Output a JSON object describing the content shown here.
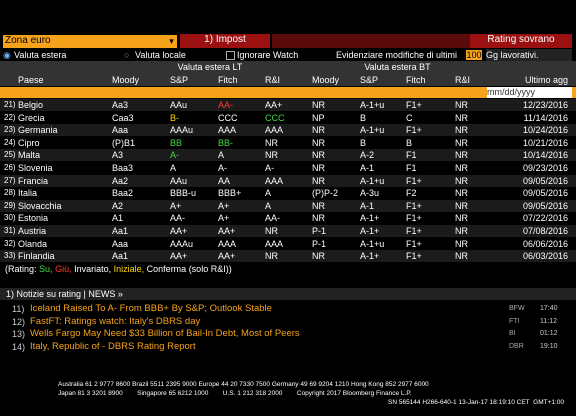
{
  "toolbar": {
    "search": "Zona euro",
    "button": "1) Impost",
    "title": "Rating sovrano"
  },
  "options": {
    "radio_selected": "Valuta estera",
    "radio_other": "Valuta locale",
    "checkbox": "Ignorare Watch",
    "highlight_label": "Evidenziare modifiche di ultimi",
    "days": "100",
    "days_unit": "Gg lavorativi."
  },
  "table": {
    "groups": [
      "Valuta estera LT",
      "Valuta estera BT"
    ],
    "columns": [
      "Paese",
      "Moody",
      "S&P",
      "Fitch",
      "R&I",
      "Moody",
      "S&P",
      "Fitch",
      "R&I",
      "Ultimo agg"
    ],
    "date_filter": "mm/dd/yyyy",
    "rows": [
      {
        "num": "21)",
        "cells": [
          "Belgio",
          "Aa3",
          "AAu",
          {
            "text": "AA-",
            "color": "#ff3b30"
          },
          "AA+",
          "NR",
          "A-1+u",
          "F1+",
          "NR",
          "12/23/2016"
        ]
      },
      {
        "num": "22)",
        "cells": [
          "Grecia",
          "Caa3",
          {
            "text": "B-",
            "color": "#ffd700"
          },
          "CCC",
          {
            "text": "CCC",
            "color": "#3ddc3d"
          },
          "NP",
          "B",
          "C",
          "NR",
          "11/14/2016"
        ]
      },
      {
        "num": "23)",
        "cells": [
          "Germania",
          "Aaa",
          "AAAu",
          "AAA",
          "AAA",
          "NR",
          "A-1+u",
          "F1+",
          "NR",
          "10/24/2016"
        ]
      },
      {
        "num": "24)",
        "cells": [
          "Cipro",
          "(P)B1",
          {
            "text": "BB",
            "color": "#3ddc3d"
          },
          {
            "text": "BB-",
            "color": "#3ddc3d"
          },
          "NR",
          "NR",
          "B",
          "B",
          "NR",
          "10/21/2016"
        ]
      },
      {
        "num": "25)",
        "cells": [
          "Malta",
          "A3",
          {
            "text": "A-",
            "color": "#3ddc3d"
          },
          "A",
          "NR",
          "NR",
          "A-2",
          "F1",
          "NR",
          "10/14/2016"
        ]
      },
      {
        "num": "26)",
        "cells": [
          "Slovenia",
          "Baa3",
          "A",
          "A-",
          "A-",
          "NR",
          "A-1",
          "F1",
          "NR",
          "09/23/2016"
        ]
      },
      {
        "num": "27)",
        "cells": [
          "Francia",
          "Aa2",
          "AAu",
          "AA",
          "AAA",
          "NR",
          "A-1+u",
          "F1+",
          "NR",
          "09/05/2016"
        ]
      },
      {
        "num": "28)",
        "cells": [
          "Italia",
          "Baa2",
          "BBB-u",
          "BBB+",
          "A",
          "(P)P-2",
          "A-3u",
          "F2",
          "NR",
          "09/05/2016"
        ]
      },
      {
        "num": "29)",
        "cells": [
          "Slovacchia",
          "A2",
          "A+",
          "A+",
          "A",
          "NR",
          "A-1",
          "F1+",
          "NR",
          "09/05/2016"
        ]
      },
      {
        "num": "30)",
        "cells": [
          "Estonia",
          "A1",
          "AA-",
          "A+",
          "AA-",
          "NR",
          "A-1+",
          "F1+",
          "NR",
          "07/22/2016"
        ]
      },
      {
        "num": "31)",
        "cells": [
          "Austria",
          "Aa1",
          "AA+",
          "AA+",
          "NR",
          "P-1",
          "A-1+",
          "F1+",
          "NR",
          "07/08/2016"
        ]
      },
      {
        "num": "32)",
        "cells": [
          "Olanda",
          "Aaa",
          "AAAu",
          "AAA",
          "AAA",
          "P-1",
          "A-1+u",
          "F1+",
          "NR",
          "06/06/2016"
        ]
      },
      {
        "num": "33)",
        "cells": [
          "Finlandia",
          "Aa1",
          "AA+",
          "AA+",
          "NR",
          "NR",
          "A-1+",
          "F1+",
          "NR",
          "06/03/2016"
        ]
      }
    ]
  },
  "legend": {
    "prefix": "(Rating:",
    "items": [
      {
        "text": "Su,",
        "color": "#3ddc3d"
      },
      {
        "text": "Giù,",
        "color": "#ff3b30"
      },
      {
        "text": "Invariato,",
        "color": "#ffffff"
      },
      {
        "text": "Iniziale,",
        "color": "#ffd700"
      },
      {
        "text": "Conferma (solo R&I))",
        "color": "#ffffff"
      }
    ]
  },
  "news": {
    "header": "1) Notizie su rating | NEWS »",
    "items": [
      {
        "num": "11)",
        "headline": "Iceland Raised To A- From BBB+ By S&P; Outlook Stable",
        "source": "BFW",
        "time": "17:40"
      },
      {
        "num": "12)",
        "headline": "FastFT: Ratings watch: Italy's DBRS day",
        "source": "FTI",
        "time": "11:12"
      },
      {
        "num": "13)",
        "headline": "Wells Fargo May Need $33 Billion of Bail-In Debt, Most of Peers",
        "source": "BI",
        "time": "01:12"
      },
      {
        "num": "14)",
        "headline": "Italy, Republic of - DBRS Rating Report",
        "source": "DBR",
        "time": "19:10"
      }
    ]
  },
  "footer": [
    "Australia 61 2 9777 8600 Brazil 5511 2395 9000 Europe 44 20 7330 7500 Germany 49 69 9204 1210 Hong Kong 852 2977 6000",
    "Japan 81 3 3201 8900        Singapore 65 6212 1000        U.S. 1 212 318 2000        Copyright 2017 Bloomberg Finance L.P.",
    "SN 565144 H266-640-1 13-Jan-17 18:19:10 CET  GMT+1:00"
  ]
}
